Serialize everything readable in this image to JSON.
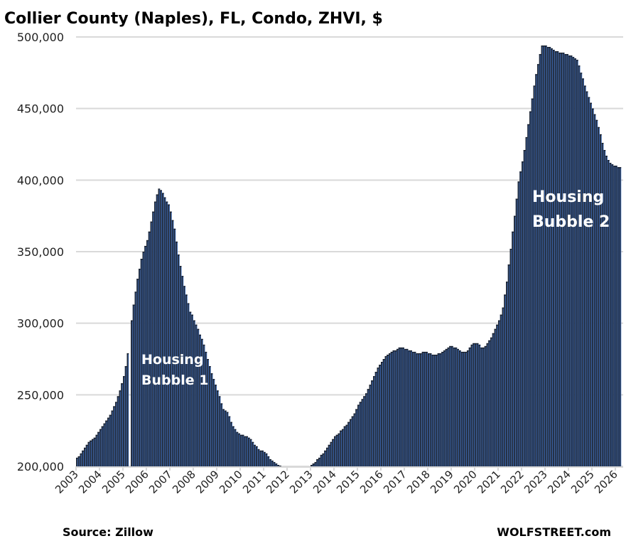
{
  "chart_data": {
    "type": "bar",
    "title": "Collier County (Naples), FL, Condo, ZHVI, $",
    "xlabel": "",
    "ylabel": "",
    "frequency": "monthly",
    "start": "2003-01",
    "ylim": [
      200000,
      500000
    ],
    "yticks": [
      200000,
      250000,
      300000,
      350000,
      400000,
      450000,
      500000
    ],
    "ytick_labels": [
      "200,000",
      "250,000",
      "300,000",
      "350,000",
      "400,000",
      "450,000",
      "500,000"
    ],
    "xtick_labels": [
      "2003",
      "2004",
      "2005",
      "2006",
      "2007",
      "2008",
      "2009",
      "2010",
      "2011",
      "2012",
      "2013",
      "2014",
      "2015",
      "2016",
      "2017",
      "2018",
      "2019",
      "2020",
      "2021",
      "2022",
      "2023",
      "2024",
      "2025",
      "2026"
    ],
    "grid": true,
    "values_thousands": [
      206,
      207,
      209,
      211,
      213,
      215,
      217,
      218,
      219,
      220,
      222,
      224,
      226,
      228,
      230,
      232,
      234,
      236,
      239,
      242,
      245,
      249,
      253,
      258,
      263,
      270,
      279,
      null,
      302,
      313,
      322,
      331,
      338,
      345,
      350,
      354,
      358,
      364,
      371,
      378,
      385,
      390,
      394,
      393,
      391,
      388,
      385,
      383,
      378,
      372,
      366,
      357,
      348,
      340,
      333,
      326,
      320,
      314,
      308,
      306,
      302,
      299,
      296,
      292,
      289,
      285,
      280,
      275,
      270,
      265,
      261,
      257,
      253,
      249,
      244,
      240,
      239,
      238,
      235,
      231,
      228,
      226,
      224,
      223,
      222,
      222,
      221,
      221,
      220,
      219,
      217,
      215,
      214,
      212,
      211,
      211,
      210,
      209,
      207,
      205,
      204,
      203,
      202,
      201,
      200.5,
      200,
      199,
      198,
      197,
      196,
      195,
      195,
      195,
      195,
      195,
      196,
      196,
      197,
      198,
      199,
      201,
      202,
      203,
      205,
      206,
      208,
      209,
      211,
      213,
      215,
      217,
      219,
      221,
      222,
      223,
      225,
      226,
      228,
      229,
      231,
      233,
      235,
      237,
      240,
      243,
      245,
      247,
      249,
      251,
      254,
      257,
      260,
      263,
      266,
      269,
      271,
      273,
      275,
      277,
      278,
      279,
      280,
      281,
      281,
      282,
      283,
      283,
      283,
      282,
      282,
      281,
      281,
      280,
      280,
      279,
      279,
      279,
      280,
      280,
      280,
      279,
      279,
      278,
      278,
      278,
      279,
      279,
      280,
      281,
      282,
      283,
      284,
      284,
      283,
      283,
      282,
      281,
      280,
      280,
      280,
      281,
      283,
      285,
      286,
      286,
      286,
      285,
      283,
      283,
      284,
      286,
      288,
      290,
      293,
      296,
      299,
      302,
      306,
      311,
      320,
      329,
      341,
      352,
      364,
      375,
      387,
      399,
      406,
      413,
      421,
      430,
      439,
      448,
      457,
      466,
      474,
      481,
      488,
      494,
      494,
      494,
      493,
      493,
      492,
      491,
      490,
      490,
      489,
      489,
      489,
      488,
      488,
      487,
      487,
      486,
      485,
      484,
      480,
      475,
      471,
      466,
      462,
      458,
      454,
      450,
      446,
      442,
      437,
      432,
      426,
      421,
      417,
      414,
      412,
      411,
      410,
      410,
      409,
      409
    ],
    "annotations": [
      {
        "line1": "Housing",
        "line2": "Bubble 1"
      },
      {
        "line1": "Housing",
        "line2": "Bubble 2"
      }
    ],
    "colors": {
      "bar": "#232d3e",
      "bar_edge": "#3a68b4",
      "grid": "#d9d9d9"
    }
  },
  "footer": {
    "source": "Source: Zillow",
    "brand": "WOLFSTREET.com"
  }
}
